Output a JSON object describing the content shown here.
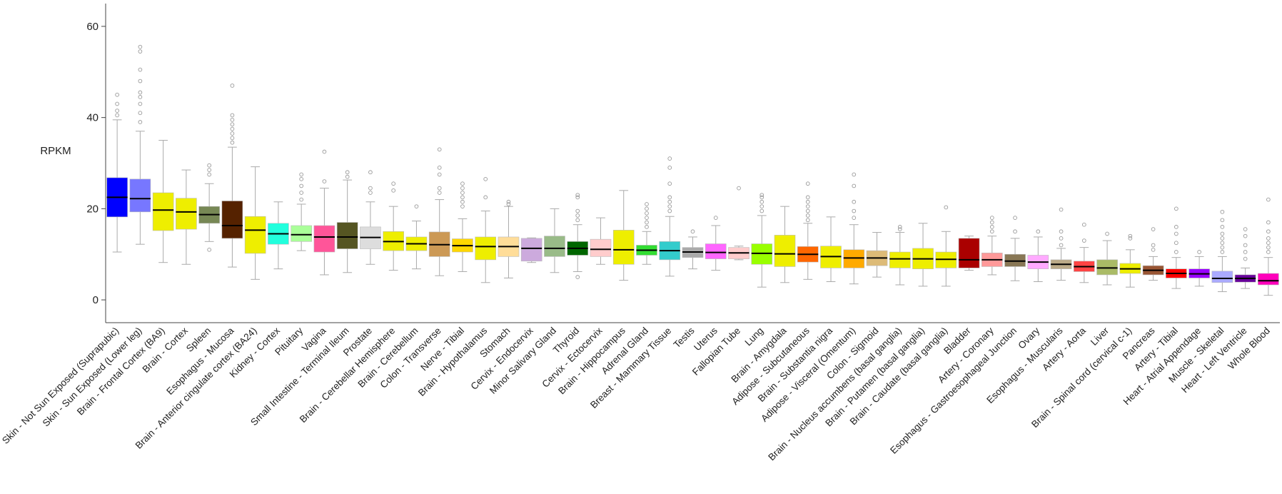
{
  "chart_data": {
    "type": "box",
    "title": "",
    "xlabel": "",
    "ylabel": "RPKM",
    "ylim": [
      -5,
      65
    ],
    "yticks": [
      0,
      20,
      40,
      60
    ],
    "grid": false,
    "series": [
      {
        "name": "Skin - Not Sun Exposed (Suprapubic)",
        "color": "#0000ff",
        "whisker_low": 10.5,
        "q1": 18.2,
        "median": 22.5,
        "q3": 26.8,
        "whisker_high": 39.5,
        "outliers": [
          40.5,
          41.5,
          43,
          45
        ]
      },
      {
        "name": "Skin - Sun Exposed (Lower leg)",
        "color": "#7777ff",
        "whisker_low": 12.2,
        "q1": 19.3,
        "median": 22.2,
        "q3": 26.5,
        "whisker_high": 37,
        "outliers": [
          39,
          41,
          43,
          44.5,
          45.5,
          48,
          50.5,
          54.5,
          55.5
        ]
      },
      {
        "name": "Brain - Frontal Cortex (BA9)",
        "color": "#eeee00",
        "whisker_low": 8.2,
        "q1": 15.2,
        "median": 19.7,
        "q3": 23.5,
        "whisker_high": 35,
        "outliers": []
      },
      {
        "name": "Brain - Cortex",
        "color": "#eeee00",
        "whisker_low": 7.8,
        "q1": 15.5,
        "median": 19.3,
        "q3": 22.3,
        "whisker_high": 28.5,
        "outliers": []
      },
      {
        "name": "Spleen",
        "color": "#778855",
        "whisker_low": 12.8,
        "q1": 16.8,
        "median": 18.7,
        "q3": 20.5,
        "whisker_high": 25.5,
        "outliers": [
          11,
          27.5,
          28.5,
          29.5
        ]
      },
      {
        "name": "Esophagus - Mucosa",
        "color": "#552200",
        "whisker_low": 7.2,
        "q1": 13.5,
        "median": 16.3,
        "q3": 21.7,
        "whisker_high": 33.5,
        "outliers": [
          34.5,
          35.5,
          36.5,
          37.5,
          38.5,
          39.5,
          40.5,
          47
        ]
      },
      {
        "name": "Brain - Anterior cingulate cortex (BA24)",
        "color": "#eeee00",
        "whisker_low": 4.5,
        "q1": 10.2,
        "median": 15.3,
        "q3": 18.3,
        "whisker_high": 29.2,
        "outliers": []
      },
      {
        "name": "Kidney - Cortex",
        "color": "#22ffdd",
        "whisker_low": 6.8,
        "q1": 12.2,
        "median": 14.5,
        "q3": 16.8,
        "whisker_high": 21.5,
        "outliers": []
      },
      {
        "name": "Pituitary",
        "color": "#aaff99",
        "whisker_low": 10.8,
        "q1": 12.8,
        "median": 14.3,
        "q3": 16.3,
        "whisker_high": 21,
        "outliers": [
          22,
          23.5,
          25,
          26.5,
          27.5
        ]
      },
      {
        "name": "Vagina",
        "color": "#ff5599",
        "whisker_low": 5.5,
        "q1": 10.5,
        "median": 13.8,
        "q3": 16.3,
        "whisker_high": 24.5,
        "outliers": [
          26,
          32.5
        ]
      },
      {
        "name": "Small Intestine - Terminal Ileum",
        "color": "#555522",
        "whisker_low": 6,
        "q1": 11.2,
        "median": 13.8,
        "q3": 17,
        "whisker_high": 26.3,
        "outliers": [
          27,
          28
        ]
      },
      {
        "name": "Prostate",
        "color": "#dddddd",
        "whisker_low": 7.8,
        "q1": 11.2,
        "median": 13.7,
        "q3": 16,
        "whisker_high": 21.5,
        "outliers": [
          23.5,
          24.5,
          28
        ]
      },
      {
        "name": "Brain - Cerebellar Hemisphere",
        "color": "#eeee00",
        "whisker_low": 6.5,
        "q1": 10.8,
        "median": 12.8,
        "q3": 15,
        "whisker_high": 20.5,
        "outliers": [
          24,
          25.5
        ]
      },
      {
        "name": "Brain - Cerebellum",
        "color": "#eeee00",
        "whisker_low": 6.8,
        "q1": 10.8,
        "median": 12.3,
        "q3": 13.8,
        "whisker_high": 17.3,
        "outliers": [
          20.5
        ]
      },
      {
        "name": "Colon - Transverse",
        "color": "#cc9955",
        "whisker_low": 5.3,
        "q1": 9.5,
        "median": 12.1,
        "q3": 14.9,
        "whisker_high": 22,
        "outliers": [
          23.5,
          24.5,
          27.5,
          29,
          33
        ]
      },
      {
        "name": "Nerve - Tibial",
        "color": "#ffd700",
        "whisker_low": 6.2,
        "q1": 10.5,
        "median": 11.9,
        "q3": 13.4,
        "whisker_high": 17.8,
        "outliers": [
          20.5,
          21.5,
          22.5,
          23.5,
          24.5,
          25.5
        ]
      },
      {
        "name": "Brain - Hypothalamus",
        "color": "#eeee00",
        "whisker_low": 3.8,
        "q1": 8.8,
        "median": 11.7,
        "q3": 13.8,
        "whisker_high": 19.5,
        "outliers": [
          22.5,
          26.5
        ]
      },
      {
        "name": "Stomach",
        "color": "#ffdd99",
        "whisker_low": 4.8,
        "q1": 9.5,
        "median": 11.7,
        "q3": 13.8,
        "whisker_high": 20.5,
        "outliers": [
          21,
          21.5
        ]
      },
      {
        "name": "Cervix - Endocervix",
        "color": "#ccaadd",
        "whisker_low": 8.2,
        "q1": 8.5,
        "median": 11.3,
        "q3": 13.5,
        "whisker_high": 13.6,
        "outliers": []
      },
      {
        "name": "Minor Salivary Gland",
        "color": "#99bb88",
        "whisker_low": 6,
        "q1": 9.5,
        "median": 11.3,
        "q3": 14,
        "whisker_high": 20,
        "outliers": []
      },
      {
        "name": "Thyroid",
        "color": "#006600",
        "whisker_low": 6.2,
        "q1": 9.8,
        "median": 11.3,
        "q3": 12.8,
        "whisker_high": 16.5,
        "outliers": [
          5,
          17.5,
          18.5,
          19.5,
          22.5,
          23
        ]
      },
      {
        "name": "Cervix - Ectocervix",
        "color": "#ffcccc",
        "whisker_low": 7.8,
        "q1": 9.5,
        "median": 11.1,
        "q3": 13.3,
        "whisker_high": 18,
        "outliers": []
      },
      {
        "name": "Brain - Hippocampus",
        "color": "#eeee00",
        "whisker_low": 4.3,
        "q1": 7.8,
        "median": 11,
        "q3": 15.3,
        "whisker_high": 24,
        "outliers": []
      },
      {
        "name": "Adrenal Gland",
        "color": "#33dd33",
        "whisker_low": 7.8,
        "q1": 9.8,
        "median": 10.9,
        "q3": 12,
        "whisker_high": 15,
        "outliers": [
          16,
          17,
          18,
          19,
          20,
          21
        ]
      },
      {
        "name": "Breast - Mammary Tissue",
        "color": "#33cccc",
        "whisker_low": 5.2,
        "q1": 8.8,
        "median": 10.8,
        "q3": 12.8,
        "whisker_high": 18.3,
        "outliers": [
          19.5,
          20.5,
          21.5,
          22.5,
          25.5,
          29,
          31
        ]
      },
      {
        "name": "Testis",
        "color": "#aaaaaa",
        "whisker_low": 6.8,
        "q1": 9.3,
        "median": 10.5,
        "q3": 11.5,
        "whisker_high": 13.8,
        "outliers": [
          15
        ]
      },
      {
        "name": "Uterus",
        "color": "#ff66ff",
        "whisker_low": 6.5,
        "q1": 9,
        "median": 10.4,
        "q3": 12.3,
        "whisker_high": 16.3,
        "outliers": [
          18
        ]
      },
      {
        "name": "Fallopian Tube",
        "color": "#ffcccc",
        "whisker_low": 8.8,
        "q1": 9,
        "median": 10.3,
        "q3": 11.5,
        "whisker_high": 11.8,
        "outliers": [
          24.5
        ]
      },
      {
        "name": "Lung",
        "color": "#99ff00",
        "whisker_low": 2.8,
        "q1": 7.8,
        "median": 10.2,
        "q3": 12.3,
        "whisker_high": 18.5,
        "outliers": [
          19.5,
          20.5,
          21.5,
          22.5,
          23
        ]
      },
      {
        "name": "Brain - Amygdala",
        "color": "#eeee00",
        "whisker_low": 3.8,
        "q1": 7.3,
        "median": 10.1,
        "q3": 14.2,
        "whisker_high": 20.5,
        "outliers": []
      },
      {
        "name": "Adipose - Subcutaneous",
        "color": "#ff6600",
        "whisker_low": 4.5,
        "q1": 8.3,
        "median": 10,
        "q3": 11.7,
        "whisker_high": 16.8,
        "outliers": [
          17.5,
          18.5,
          19.5,
          20.5,
          21.5,
          22.5,
          25.5
        ]
      },
      {
        "name": "Brain - Substantia nigra",
        "color": "#eeee00",
        "whisker_low": 4,
        "q1": 7,
        "median": 9.5,
        "q3": 11.8,
        "whisker_high": 18.2,
        "outliers": []
      },
      {
        "name": "Adipose - Visceral (Omentum)",
        "color": "#ffaa00",
        "whisker_low": 3.5,
        "q1": 7,
        "median": 9.2,
        "q3": 11,
        "whisker_high": 16.5,
        "outliers": [
          18,
          19.5,
          21.5,
          25,
          27.5
        ]
      },
      {
        "name": "Colon - Sigmoid",
        "color": "#ddbb77",
        "whisker_low": 5,
        "q1": 7.5,
        "median": 9.2,
        "q3": 10.8,
        "whisker_high": 14.8,
        "outliers": []
      },
      {
        "name": "Brain - Nucleus accumbens (basal ganglia)",
        "color": "#eeee00",
        "whisker_low": 3.3,
        "q1": 7,
        "median": 9,
        "q3": 10.5,
        "whisker_high": 14.8,
        "outliers": [
          15.5,
          16
        ]
      },
      {
        "name": "Brain - Putamen (basal ganglia)",
        "color": "#eeee00",
        "whisker_low": 3,
        "q1": 6.8,
        "median": 9,
        "q3": 11.3,
        "whisker_high": 16.8,
        "outliers": []
      },
      {
        "name": "Brain - Caudate (basal ganglia)",
        "color": "#eeee00",
        "whisker_low": 3,
        "q1": 7,
        "median": 8.9,
        "q3": 10.5,
        "whisker_high": 15,
        "outliers": [
          20.3
        ]
      },
      {
        "name": "Bladder",
        "color": "#aa0000",
        "whisker_low": 6.5,
        "q1": 7,
        "median": 8.8,
        "q3": 13.5,
        "whisker_high": 14,
        "outliers": []
      },
      {
        "name": "Artery - Coronary",
        "color": "#ff9999",
        "whisker_low": 5.5,
        "q1": 7.3,
        "median": 8.8,
        "q3": 10.3,
        "whisker_high": 14,
        "outliers": [
          15,
          16,
          17,
          18
        ]
      },
      {
        "name": "Esophagus - Gastroesophageal Junction",
        "color": "#887755",
        "whisker_low": 4.2,
        "q1": 7.3,
        "median": 8.5,
        "q3": 10,
        "whisker_high": 13.5,
        "outliers": [
          15,
          18
        ]
      },
      {
        "name": "Ovary",
        "color": "#ffaaff",
        "whisker_low": 4,
        "q1": 6.8,
        "median": 8.3,
        "q3": 9.8,
        "whisker_high": 13.8,
        "outliers": [
          15
        ]
      },
      {
        "name": "Esophagus - Muscularis",
        "color": "#bbaa88",
        "whisker_low": 4.3,
        "q1": 6.8,
        "median": 7.8,
        "q3": 8.8,
        "whisker_high": 11.3,
        "outliers": [
          12,
          13.5,
          15,
          19.8
        ]
      },
      {
        "name": "Artery - Aorta",
        "color": "#ff4444",
        "whisker_low": 3.8,
        "q1": 6.2,
        "median": 7.3,
        "q3": 8.5,
        "whisker_high": 11.5,
        "outliers": [
          13,
          16.5
        ]
      },
      {
        "name": "Liver",
        "color": "#aabb66",
        "whisker_low": 3.3,
        "q1": 5.5,
        "median": 7,
        "q3": 8.8,
        "whisker_high": 13,
        "outliers": [
          14.5
        ]
      },
      {
        "name": "Brain - Spinal cord (cervical c-1)",
        "color": "#eeee00",
        "whisker_low": 2.8,
        "q1": 5.8,
        "median": 6.8,
        "q3": 8,
        "whisker_high": 11,
        "outliers": [
          13.5,
          14
        ]
      },
      {
        "name": "Pancreas",
        "color": "#995533",
        "whisker_low": 4.3,
        "q1": 5.5,
        "median": 6.5,
        "q3": 7.5,
        "whisker_high": 9.5,
        "outliers": [
          11,
          12,
          15.5
        ]
      },
      {
        "name": "Artery - Tibial",
        "color": "#ff0000",
        "whisker_low": 2.5,
        "q1": 4.8,
        "median": 5.8,
        "q3": 6.8,
        "whisker_high": 9.3,
        "outliers": [
          10.5,
          12.5,
          14.5,
          16,
          20
        ]
      },
      {
        "name": "Heart - Atrial Appendage",
        "color": "#9900ff",
        "whisker_low": 3,
        "q1": 4.8,
        "median": 5.7,
        "q3": 6.8,
        "whisker_high": 9.5,
        "outliers": [
          10.5
        ]
      },
      {
        "name": "Muscle - Skeletal",
        "color": "#aaaaff",
        "whisker_low": 1.8,
        "q1": 3.8,
        "median": 4.7,
        "q3": 6.3,
        "whisker_high": 9.5,
        "outliers": [
          10.5,
          11.5,
          12.5,
          13.5,
          14.5,
          16,
          17.5,
          19.3
        ]
      },
      {
        "name": "Heart - Left Ventricle",
        "color": "#660099",
        "whisker_low": 2.5,
        "q1": 3.9,
        "median": 4.7,
        "q3": 5.5,
        "whisker_high": 7,
        "outliers": [
          9,
          10.5,
          12,
          14,
          15.5
        ]
      },
      {
        "name": "Whole Blood",
        "color": "#ff00bb",
        "whisker_low": 1,
        "q1": 3.3,
        "median": 4.2,
        "q3": 5.8,
        "whisker_high": 9.3,
        "outliers": [
          10.5,
          11.5,
          12.5,
          13.5,
          15,
          17,
          22
        ]
      }
    ]
  }
}
